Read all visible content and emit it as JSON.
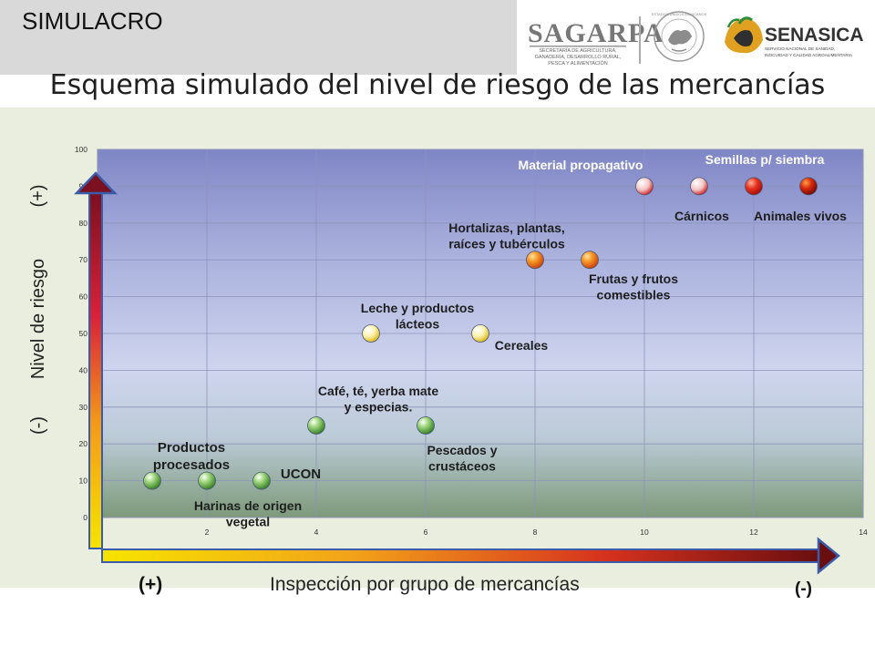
{
  "header": {
    "banner": "SIMULACRO",
    "title": "Esquema simulado del nivel de riesgo de las mercancías",
    "logos": {
      "sagarpa": {
        "name": "SAGARPA",
        "subtitle_lines": [
          "SECRETARÍA DE AGRICULTURA,",
          "GANADERÍA, DESARROLLO RURAL,",
          "PESCA Y ALIMENTACIÓN"
        ]
      },
      "seal_text": "ESTADOS UNIDOS MEXICANOS",
      "senasica": {
        "name": "SENASICA",
        "subtitle_lines": [
          "SERVICIO NACIONAL DE SANIDAD,",
          "INOCUIDAD Y CALIDAD AGROALIMENTARIA"
        ]
      }
    }
  },
  "axes": {
    "y_caption": {
      "minus": "(-)",
      "label": "Nivel de riesgo",
      "plus": "(+)"
    },
    "x_caption": {
      "plus": "(+)",
      "label": "Inspección por grupo de mercancías",
      "minus": "(-)"
    }
  },
  "chart_data": {
    "type": "scatter",
    "xlim": [
      0,
      14
    ],
    "ylim": [
      0,
      100
    ],
    "x_ticks": [
      "2",
      "4",
      "6",
      "8",
      "10",
      "12",
      "14"
    ],
    "y_ticks": [
      "0",
      "10",
      "20",
      "30",
      "40",
      "50",
      "60",
      "70",
      "80",
      "90",
      "100"
    ],
    "grid": true,
    "colors": {
      "green": "#3e9a2c",
      "yellow": "#e8c214",
      "orange": "#ee6a10",
      "red": "#d81418",
      "white": "#f4f6fa"
    },
    "points": [
      {
        "x": 1,
        "y": 10,
        "style": "green"
      },
      {
        "x": 2,
        "y": 10,
        "style": "green"
      },
      {
        "x": 3,
        "y": 10,
        "style": "green"
      },
      {
        "x": 4,
        "y": 25,
        "style": "green"
      },
      {
        "x": 6,
        "y": 25,
        "style": "green"
      },
      {
        "x": 5,
        "y": 50,
        "style": "yellow"
      },
      {
        "x": 7,
        "y": 50,
        "style": "yellow"
      },
      {
        "x": 8,
        "y": 70,
        "style": "orange"
      },
      {
        "x": 9,
        "y": 70,
        "style": "orange"
      },
      {
        "x": 10,
        "y": 90,
        "style": "red-white"
      },
      {
        "x": 11,
        "y": 90,
        "style": "red-white"
      },
      {
        "x": 12,
        "y": 90,
        "style": "red"
      },
      {
        "x": 13,
        "y": 90,
        "style": "red-dark"
      }
    ],
    "annotations": [
      {
        "lines": [
          "Productos",
          "procesados"
        ],
        "size": 15
      },
      {
        "lines": [
          "Harinas de origen",
          "vegetal"
        ],
        "size": 14
      },
      {
        "lines": [
          "UCON"
        ],
        "size": 15
      },
      {
        "lines": [
          "Café, té, yerba mate",
          "y especias."
        ],
        "size": 14
      },
      {
        "lines": [
          "Pescados y",
          "crustáceos"
        ],
        "size": 14
      },
      {
        "lines": [
          "Leche y productos",
          "lácteos"
        ],
        "size": 14
      },
      {
        "lines": [
          "Cereales"
        ],
        "size": 14
      },
      {
        "lines": [
          "Hortalizas, plantas,",
          "raíces y tubérculos"
        ],
        "size": 14
      },
      {
        "lines": [
          "Frutas y frutos",
          "comestibles"
        ],
        "size": 14
      },
      {
        "lines": [
          "Material propagativo"
        ],
        "size": 14,
        "color": "#ffffff"
      },
      {
        "lines": [
          "Semillas p/ siembra"
        ],
        "size": 14,
        "color": "#ffffff"
      },
      {
        "lines": [
          "Cárnicos"
        ],
        "size": 14
      },
      {
        "lines": [
          "Animales vivos"
        ],
        "size": 14
      }
    ]
  }
}
